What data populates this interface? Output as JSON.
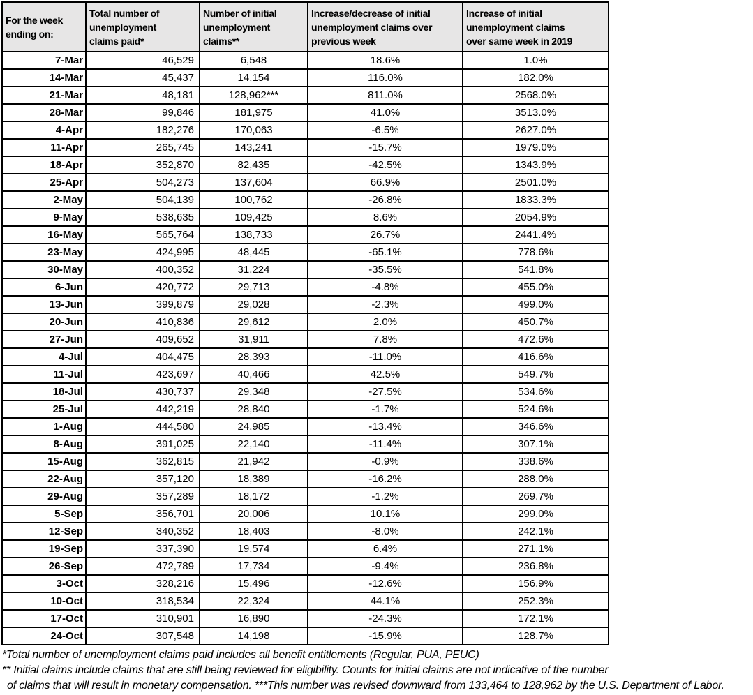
{
  "chart_data": {
    "type": "table",
    "title": "",
    "columns": [
      "For the week\nending on:",
      "Total number of\nunemployment\nclaims paid*",
      "Number of initial\nunemployment\nclaims**",
      "Increase/decrease of initial\nunemployment claims over\nprevious week",
      "Increase of initial\nunemployment claims\nover same week in 2019"
    ],
    "rows": [
      [
        "7-Mar",
        "46,529",
        "6,548",
        "18.6%",
        "1.0%"
      ],
      [
        "14-Mar",
        "45,437",
        "14,154",
        "116.0%",
        "182.0%"
      ],
      [
        "21-Mar",
        "48,181",
        "128,962***",
        "811.0%",
        "2568.0%"
      ],
      [
        "28-Mar",
        "99,846",
        "181,975",
        "41.0%",
        "3513.0%"
      ],
      [
        "4-Apr",
        "182,276",
        "170,063",
        "-6.5%",
        "2627.0%"
      ],
      [
        "11-Apr",
        "265,745",
        "143,241",
        "-15.7%",
        "1979.0%"
      ],
      [
        "18-Apr",
        "352,870",
        "82,435",
        "-42.5%",
        "1343.9%"
      ],
      [
        "25-Apr",
        "504,273",
        "137,604",
        "66.9%",
        "2501.0%"
      ],
      [
        "2-May",
        "504,139",
        "100,762",
        "-26.8%",
        "1833.3%"
      ],
      [
        "9-May",
        "538,635",
        "109,425",
        "8.6%",
        "2054.9%"
      ],
      [
        "16-May",
        "565,764",
        "138,733",
        "26.7%",
        "2441.4%"
      ],
      [
        "23-May",
        "424,995",
        "48,445",
        "-65.1%",
        "778.6%"
      ],
      [
        "30-May",
        "400,352",
        "31,224",
        "-35.5%",
        "541.8%"
      ],
      [
        "6-Jun",
        "420,772",
        "29,713",
        "-4.8%",
        "455.0%"
      ],
      [
        "13-Jun",
        "399,879",
        "29,028",
        "-2.3%",
        "499.0%"
      ],
      [
        "20-Jun",
        "410,836",
        "29,612",
        "2.0%",
        "450.7%"
      ],
      [
        "27-Jun",
        "409,652",
        "31,911",
        "7.8%",
        "472.6%"
      ],
      [
        "4-Jul",
        "404,475",
        "28,393",
        "-11.0%",
        "416.6%"
      ],
      [
        "11-Jul",
        "423,697",
        "40,466",
        "42.5%",
        "549.7%"
      ],
      [
        "18-Jul",
        "430,737",
        "29,348",
        "-27.5%",
        "534.6%"
      ],
      [
        "25-Jul",
        "442,219",
        "28,840",
        "-1.7%",
        "524.6%"
      ],
      [
        "1-Aug",
        "444,580",
        "24,985",
        "-13.4%",
        "346.6%"
      ],
      [
        "8-Aug",
        "391,025",
        "22,140",
        "-11.4%",
        "307.1%"
      ],
      [
        "15-Aug",
        "362,815",
        "21,942",
        "-0.9%",
        "338.6%"
      ],
      [
        "22-Aug",
        "357,120",
        "18,389",
        "-16.2%",
        "288.0%"
      ],
      [
        "29-Aug",
        "357,289",
        "18,172",
        "-1.2%",
        "269.7%"
      ],
      [
        "5-Sep",
        "356,701",
        "20,006",
        "10.1%",
        "299.0%"
      ],
      [
        "12-Sep",
        "340,352",
        "18,403",
        "-8.0%",
        "242.1%"
      ],
      [
        "19-Sep",
        "337,390",
        "19,574",
        "6.4%",
        "271.1%"
      ],
      [
        "26-Sep",
        "472,789",
        "17,734",
        "-9.4%",
        "236.8%"
      ],
      [
        "3-Oct",
        "328,216",
        "15,496",
        "-12.6%",
        "156.9%"
      ],
      [
        "10-Oct",
        "318,534",
        "22,324",
        "44.1%",
        "252.3%"
      ],
      [
        "17-Oct",
        "310,901",
        "16,890",
        "-24.3%",
        "172.1%"
      ],
      [
        "24-Oct",
        "307,548",
        "14,198",
        "-15.9%",
        "128.7%"
      ]
    ],
    "footnotes": [
      "*Total number of unemployment claims paid includes all benefit entitlements (Regular, PUA, PEUC)",
      "** Initial claims include claims that are still being reviewed for eligibility. Counts for initial claims are not indicative of the number",
      "of claims that will result in monetary compensation. ***This number was revised downward from 133,464 to 128,962 by the U.S. Department of Labor."
    ],
    "styles": {
      "header_bg": "#E7E6E6",
      "border_color": "#000000",
      "text_color": "#000000"
    }
  }
}
